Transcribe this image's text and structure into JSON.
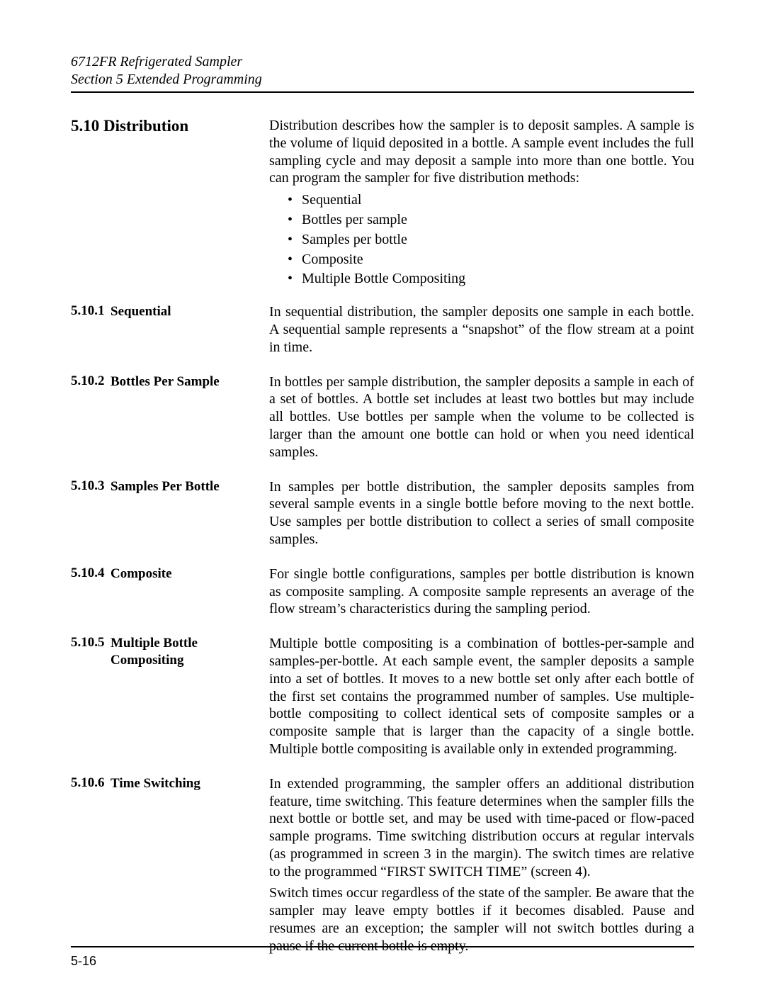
{
  "header": {
    "line1": "6712FR Refrigerated Sampler",
    "line2": "Section 5  Extended Programming"
  },
  "main": {
    "number": "5.10",
    "title": "Distribution",
    "intro": "Distribution describes how the sampler is to deposit samples. A sample is the volume of liquid deposited in a bottle. A sample event includes the full sampling cycle and may deposit a sample into more than one bottle. You can program the sampler for five distribution methods:",
    "bullets": [
      "Sequential",
      "Bottles per sample",
      "Samples per bottle",
      "Composite",
      "Multiple Bottle Compositing"
    ]
  },
  "subs": [
    {
      "num": "5.10.1",
      "title": "Sequential",
      "body": "In sequential distribution, the sampler deposits one sample in each bottle. A sequential sample represents a “snapshot” of the flow stream at a point in time."
    },
    {
      "num": "5.10.2",
      "title": "Bottles Per Sample",
      "body": "In bottles per sample distribution, the sampler deposits a sample in each of a set of bottles. A bottle set includes at least two bottles but may include all bottles. Use bottles per sample when the volume to be collected is larger than the amount one bottle can hold or when you need identical samples."
    },
    {
      "num": "5.10.3",
      "title": "Samples Per Bottle",
      "body": "In samples per bottle distribution, the sampler deposits samples from several sample events in a single bottle before moving to the next bottle. Use samples per bottle distribution to collect a series of small composite samples."
    },
    {
      "num": "5.10.4",
      "title": "Composite",
      "body": "For single bottle configurations, samples per bottle distribution is known as composite sampling. A composite sample represents an average of the flow stream’s characteristics during the sampling period."
    },
    {
      "num": "5.10.5",
      "title": "Multiple Bottle Compositing",
      "body": "Multiple bottle compositing is a combination of bottles-per-sample and samples-per-bottle. At each sample event, the sampler deposits a sample into a set of bottles. It moves to a new bottle set only after each bottle of the first set contains the programmed number of samples. Use multiple-bottle compositing to collect identical sets of composite samples or a composite sample that is larger than the capacity of a single bottle. Multiple bottle compositing is available only in extended programming."
    },
    {
      "num": "5.10.6",
      "title": "Time Switching",
      "body": "In extended programming, the sampler offers an additional distribution feature, time switching. This feature determines when the sampler fills the next bottle or bottle set, and may be used with time-paced or flow-paced sample programs. Time switching distribution occurs at regular intervals (as programmed in screen 3 in the margin). The switch times are relative to the programmed “FIRST SWITCH TIME” (screen 4).",
      "body2": "Switch times occur regardless of the state of the sampler. Be aware that the sampler may leave empty bottles if it becomes disabled. Pause and resumes are an exception; the sampler will not switch bottles during a pause if the current bottle is empty."
    }
  ],
  "footer": {
    "pagenum": "5-16"
  }
}
